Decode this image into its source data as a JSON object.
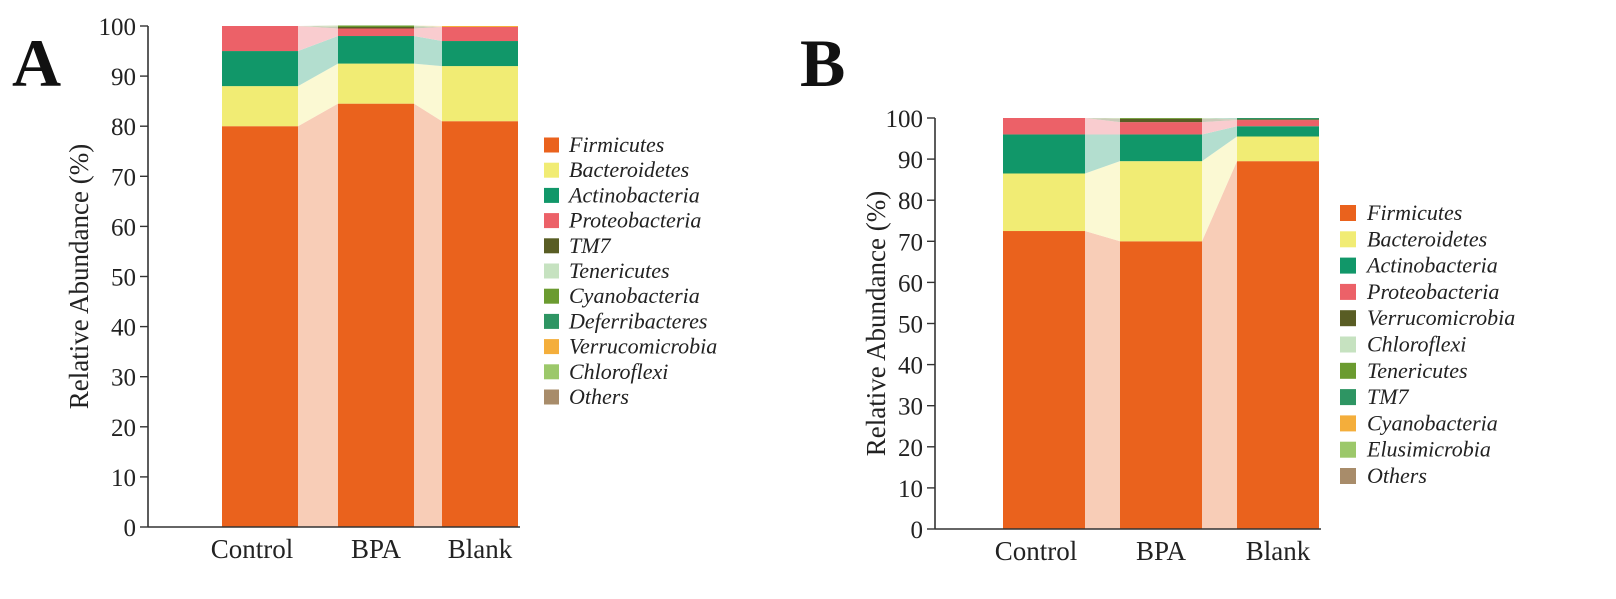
{
  "chart_data": [
    {
      "panel": "A",
      "type": "bar",
      "stacked": true,
      "ylabel": "Relative Abundance (%)",
      "xlabel": "",
      "ylim": [
        0,
        100
      ],
      "yticks": [
        0,
        10,
        20,
        30,
        40,
        50,
        60,
        70,
        80,
        90,
        100
      ],
      "categories": [
        "Control",
        "BPA",
        "Blank"
      ],
      "series": [
        {
          "name": "Firmicutes",
          "color": "#ea621d",
          "values": [
            80.0,
            84.5,
            81.0
          ]
        },
        {
          "name": "Bacteroidetes",
          "color": "#f1ec74",
          "values": [
            8.0,
            8.0,
            11.0
          ]
        },
        {
          "name": "Actinobacteria",
          "color": "#119769",
          "values": [
            7.0,
            5.5,
            5.0
          ]
        },
        {
          "name": "Proteobacteria",
          "color": "#ec6168",
          "values": [
            5.0,
            1.5,
            2.8
          ]
        },
        {
          "name": "TM7",
          "color": "#595d24",
          "values": [
            0.0,
            0.3,
            0.0
          ]
        },
        {
          "name": "Tenericutes",
          "color": "#c6e2c0",
          "values": [
            0.0,
            0.0,
            0.0
          ]
        },
        {
          "name": "Cyanobacteria",
          "color": "#6b9b30",
          "values": [
            0.0,
            0.3,
            0.0
          ]
        },
        {
          "name": "Deferribacteres",
          "color": "#2e9563",
          "values": [
            0.0,
            0.0,
            0.0
          ]
        },
        {
          "name": "Verrucomicrobia",
          "color": "#f4ae3b",
          "values": [
            0.0,
            0.0,
            0.2
          ]
        },
        {
          "name": "Chloroflexi",
          "color": "#9cc86a",
          "values": [
            0.0,
            0.0,
            0.0
          ]
        },
        {
          "name": "Others",
          "color": "#a88c6a",
          "values": [
            0.0,
            0.0,
            0.0
          ]
        }
      ]
    },
    {
      "panel": "B",
      "type": "bar",
      "stacked": true,
      "ylabel": "Relative Abundance (%)",
      "xlabel": "",
      "ylim": [
        0,
        100
      ],
      "yticks": [
        0,
        10,
        20,
        30,
        40,
        50,
        60,
        70,
        80,
        90,
        100
      ],
      "categories": [
        "Control",
        "BPA",
        "Blank"
      ],
      "series": [
        {
          "name": "Firmicutes",
          "color": "#ea621d",
          "values": [
            72.5,
            70.0,
            89.5
          ]
        },
        {
          "name": "Bacteroidetes",
          "color": "#f1ec74",
          "values": [
            14.0,
            19.5,
            6.0
          ]
        },
        {
          "name": "Actinobacteria",
          "color": "#119769",
          "values": [
            9.5,
            6.5,
            2.5
          ]
        },
        {
          "name": "Proteobacteria",
          "color": "#ec6168",
          "values": [
            4.0,
            3.0,
            1.5
          ]
        },
        {
          "name": "Verrucomicrobia",
          "color": "#595d24",
          "values": [
            0.0,
            0.8,
            0.2
          ]
        },
        {
          "name": "Chloroflexi",
          "color": "#c6e2c0",
          "values": [
            0.0,
            0.0,
            0.0
          ]
        },
        {
          "name": "Tenericutes",
          "color": "#6b9b30",
          "values": [
            0.0,
            0.2,
            0.0
          ]
        },
        {
          "name": "TM7",
          "color": "#2e9563",
          "values": [
            0.0,
            0.0,
            0.3
          ]
        },
        {
          "name": "Cyanobacteria",
          "color": "#f4ae3b",
          "values": [
            0.0,
            0.0,
            0.0
          ]
        },
        {
          "name": "Elusimicrobia",
          "color": "#9cc86a",
          "values": [
            0.0,
            0.0,
            0.0
          ]
        },
        {
          "name": "Others",
          "color": "#a88c6a",
          "values": [
            0.0,
            0.0,
            0.0
          ]
        }
      ]
    }
  ]
}
